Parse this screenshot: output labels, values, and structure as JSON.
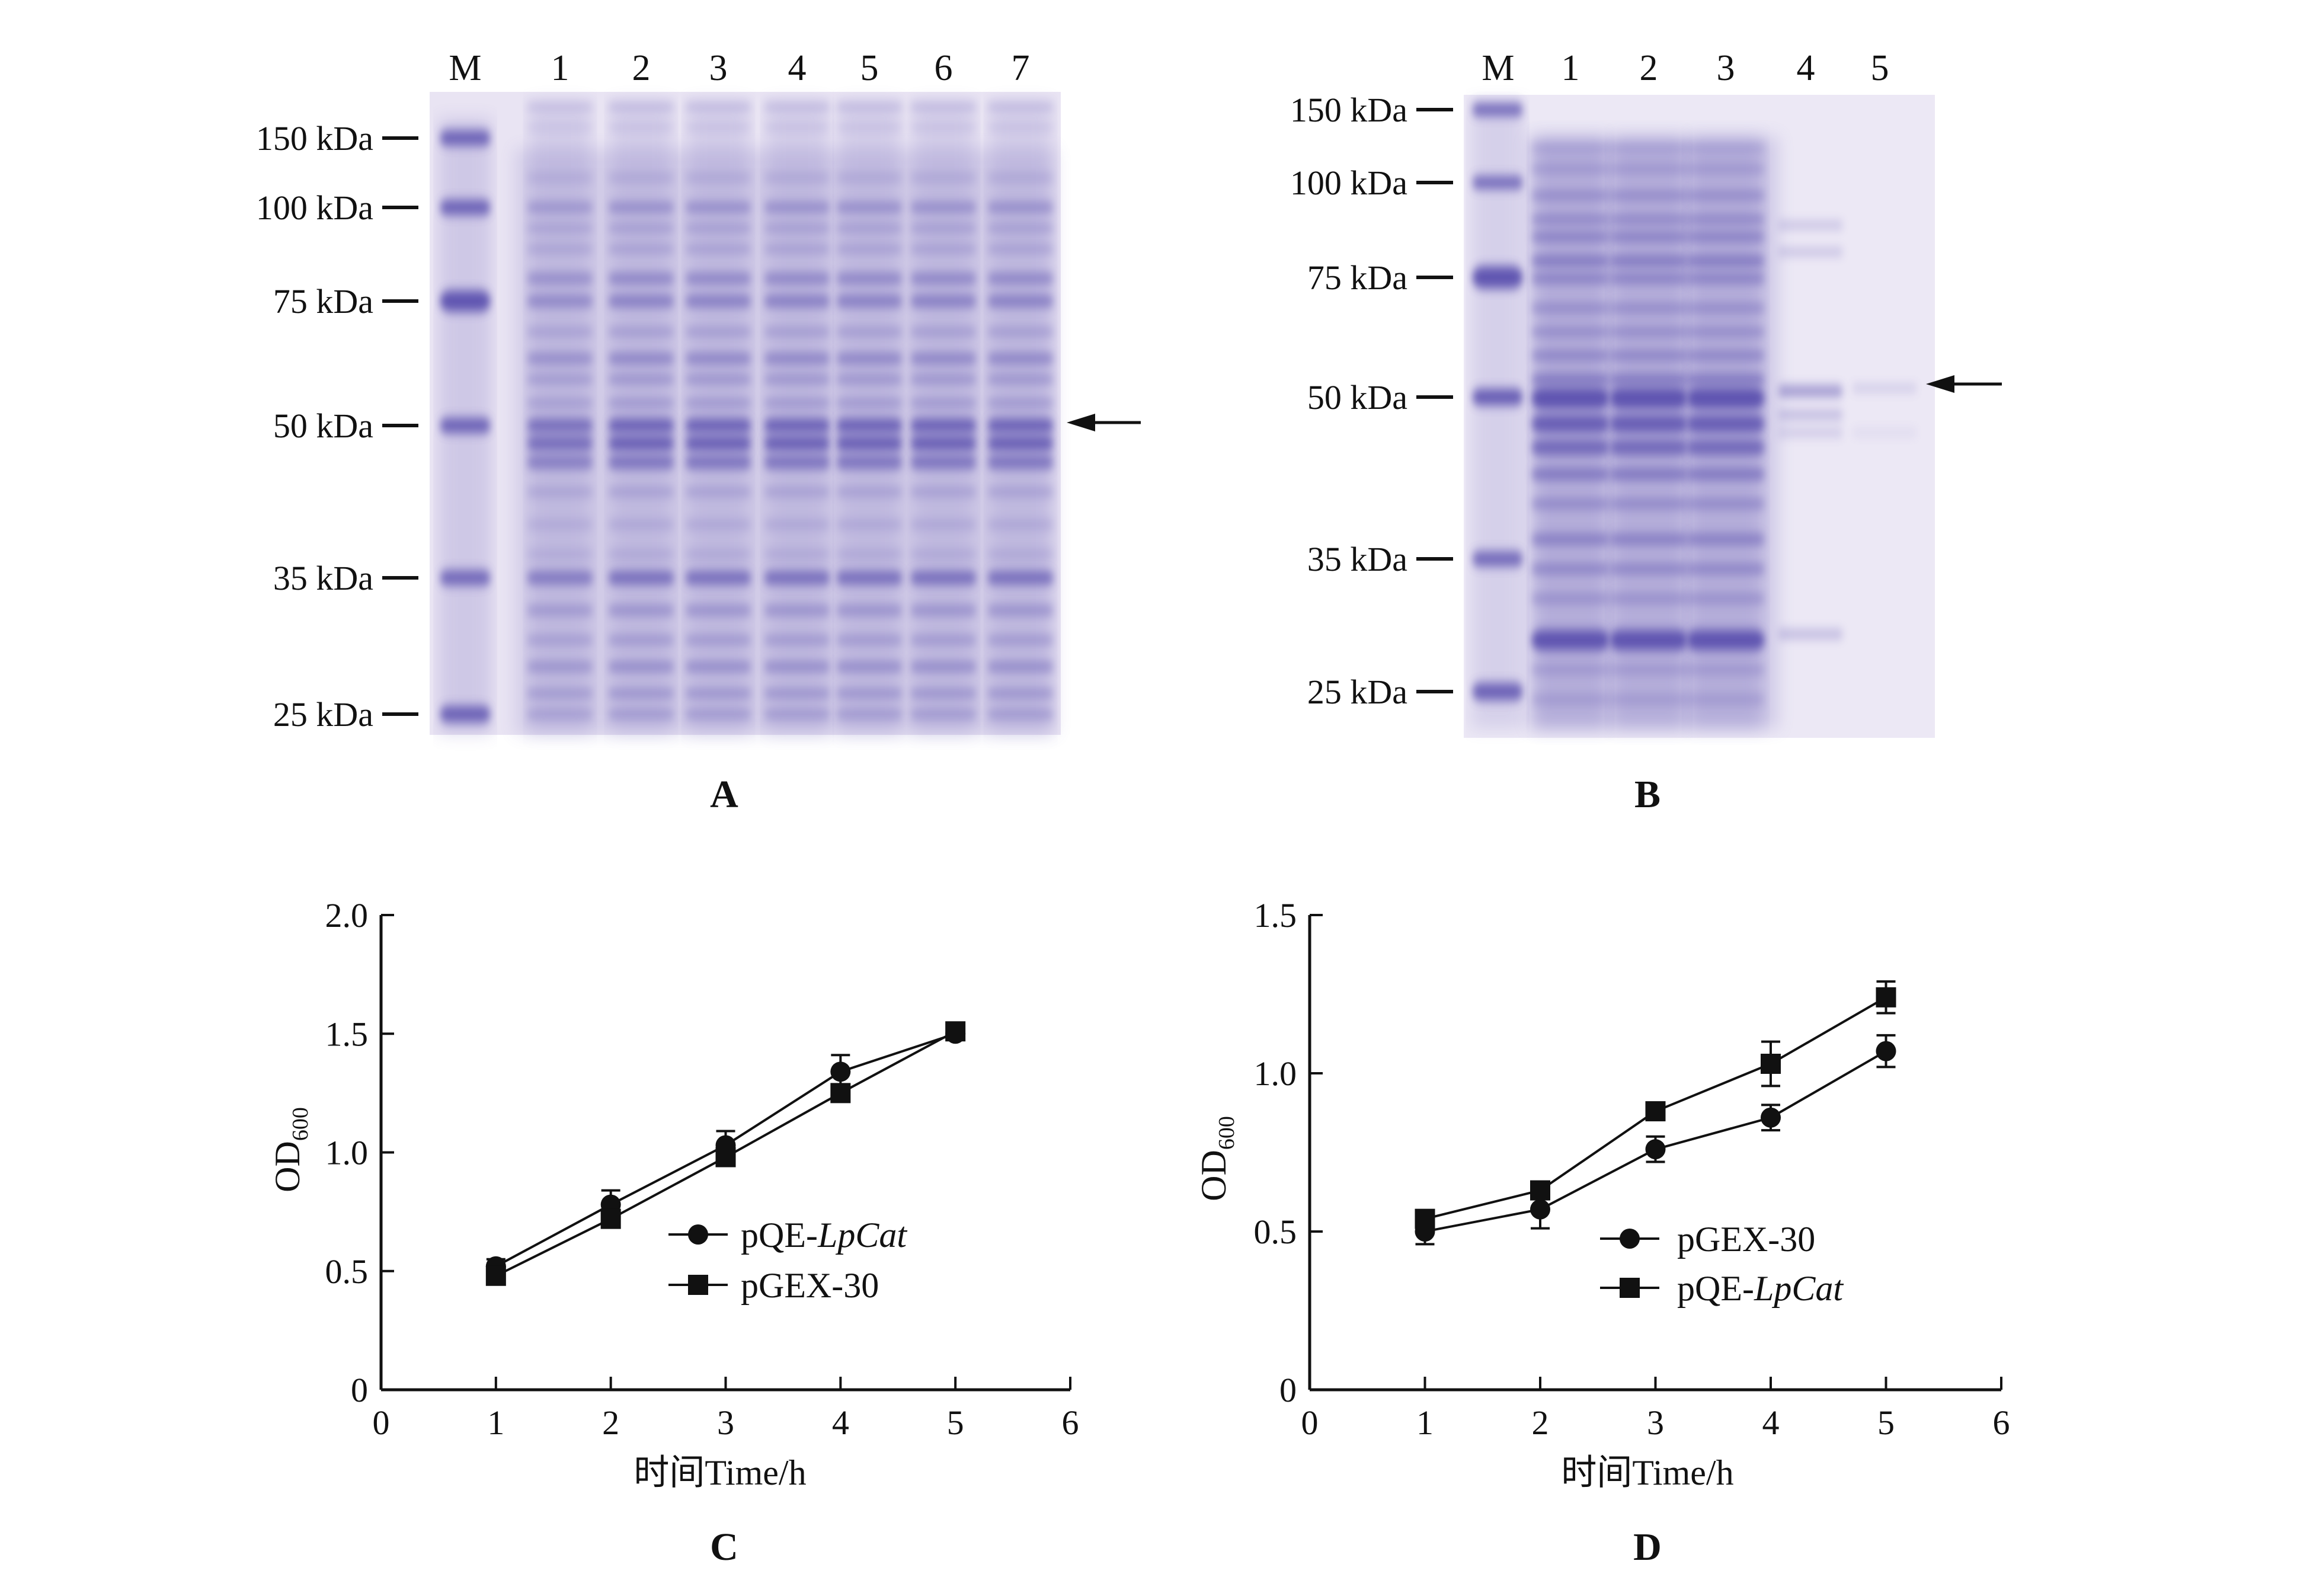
{
  "panel_a": {
    "letter": "A",
    "lanes": [
      "M",
      "1",
      "2",
      "3",
      "4",
      "5",
      "6",
      "7"
    ],
    "markers": [
      {
        "label": "150 kDa",
        "kda": 150
      },
      {
        "label": "100 kDa",
        "kda": 100
      },
      {
        "label": "75 kDa",
        "kda": 75
      },
      {
        "label": "50 kDa",
        "kda": 50
      },
      {
        "label": "35 kDa",
        "kda": 35
      },
      {
        "label": "25 kDa",
        "kda": 25
      }
    ],
    "arrow_kda": 50
  },
  "panel_b": {
    "letter": "B",
    "lanes": [
      "M",
      "1",
      "2",
      "3",
      "4",
      "5"
    ],
    "markers": [
      {
        "label": "150 kDa",
        "kda": 150
      },
      {
        "label": "100 kDa",
        "kda": 100
      },
      {
        "label": "75 kDa",
        "kda": 75
      },
      {
        "label": "50 kDa",
        "kda": 50
      },
      {
        "label": "35 kDa",
        "kda": 35
      },
      {
        "label": "25 kDa",
        "kda": 25
      }
    ],
    "arrow_kda": 50
  },
  "gel_color": "#5a4fae",
  "chart_data": [
    {
      "panel": "C",
      "type": "line",
      "xlabel": "时间Time/h",
      "ylabel": "OD",
      "ylabel_sub": "600",
      "xlim": [
        0,
        6
      ],
      "ylim": [
        0,
        2.0
      ],
      "xticks": [
        "0",
        "1",
        "2",
        "3",
        "4",
        "5",
        "6"
      ],
      "yticks": [
        "0",
        "0.5",
        "1.0",
        "1.5",
        "2.0"
      ],
      "ytick_values": [
        0,
        0.5,
        1.0,
        1.5,
        2.0
      ],
      "legend_position": "center-right",
      "series": [
        {
          "name_prefix": "pQE-",
          "name_italic": "LpCat",
          "marker": "circle",
          "x": [
            1,
            2,
            3,
            4,
            5
          ],
          "y": [
            0.52,
            0.78,
            1.03,
            1.34,
            1.5
          ],
          "err": [
            0.03,
            0.06,
            0.06,
            0.07,
            0.02
          ]
        },
        {
          "name_prefix": "pGEX-30",
          "name_italic": "",
          "marker": "square",
          "x": [
            1,
            2,
            3,
            4,
            5
          ],
          "y": [
            0.48,
            0.72,
            0.98,
            1.25,
            1.51
          ],
          "err": [
            0.02,
            0.03,
            0.03,
            0.03,
            0.02
          ]
        }
      ]
    },
    {
      "panel": "D",
      "type": "line",
      "xlabel": "时间Time/h",
      "ylabel": "OD",
      "ylabel_sub": "600",
      "xlim": [
        0,
        6
      ],
      "ylim": [
        0,
        1.5
      ],
      "xticks": [
        "0",
        "1",
        "2",
        "3",
        "4",
        "5",
        "6"
      ],
      "yticks": [
        "0",
        "0.5",
        "1.0",
        "1.5"
      ],
      "ytick_values": [
        0,
        0.5,
        1.0,
        1.5
      ],
      "legend_position": "center-right",
      "series": [
        {
          "name_prefix": "pGEX-30",
          "name_italic": "",
          "marker": "circle",
          "x": [
            1,
            2,
            3,
            4,
            5
          ],
          "y": [
            0.5,
            0.57,
            0.76,
            0.86,
            1.07
          ],
          "err": [
            0.04,
            0.06,
            0.04,
            0.04,
            0.05
          ]
        },
        {
          "name_prefix": "pQE-",
          "name_italic": "LpCat",
          "marker": "square",
          "x": [
            1,
            2,
            3,
            4,
            5
          ],
          "y": [
            0.54,
            0.63,
            0.88,
            1.03,
            1.24
          ],
          "err": [
            0.02,
            0.02,
            0.02,
            0.07,
            0.05
          ]
        }
      ]
    }
  ]
}
